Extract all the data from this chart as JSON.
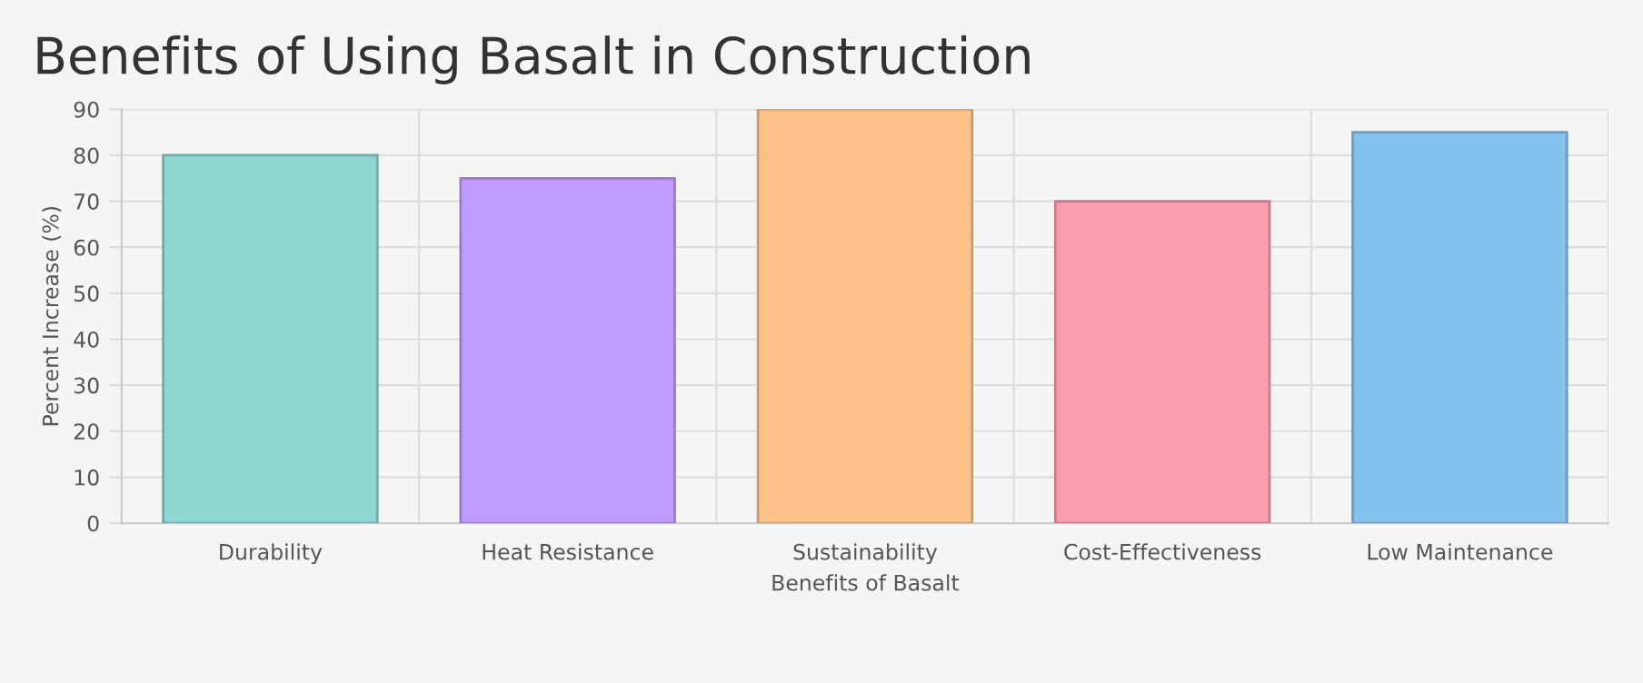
{
  "chart_data": {
    "type": "bar",
    "title": "Benefits of Using Basalt in Construction",
    "xlabel": "Benefits of Basalt",
    "ylabel": "Percent Increase (%)",
    "categories": [
      "Durability",
      "Heat Resistance",
      "Sustainability",
      "Cost-Effectiveness",
      "Low Maintenance"
    ],
    "values": [
      80,
      75,
      90,
      70,
      85
    ],
    "colors": [
      "#8fd6d3",
      "#bf9bfb",
      "#fdc28a",
      "#f99daf",
      "#86c2ee"
    ],
    "ylim": [
      0,
      90
    ],
    "yticks": [
      0,
      10,
      20,
      30,
      40,
      50,
      60,
      70,
      80,
      90
    ],
    "grid": true,
    "legend": false
  }
}
